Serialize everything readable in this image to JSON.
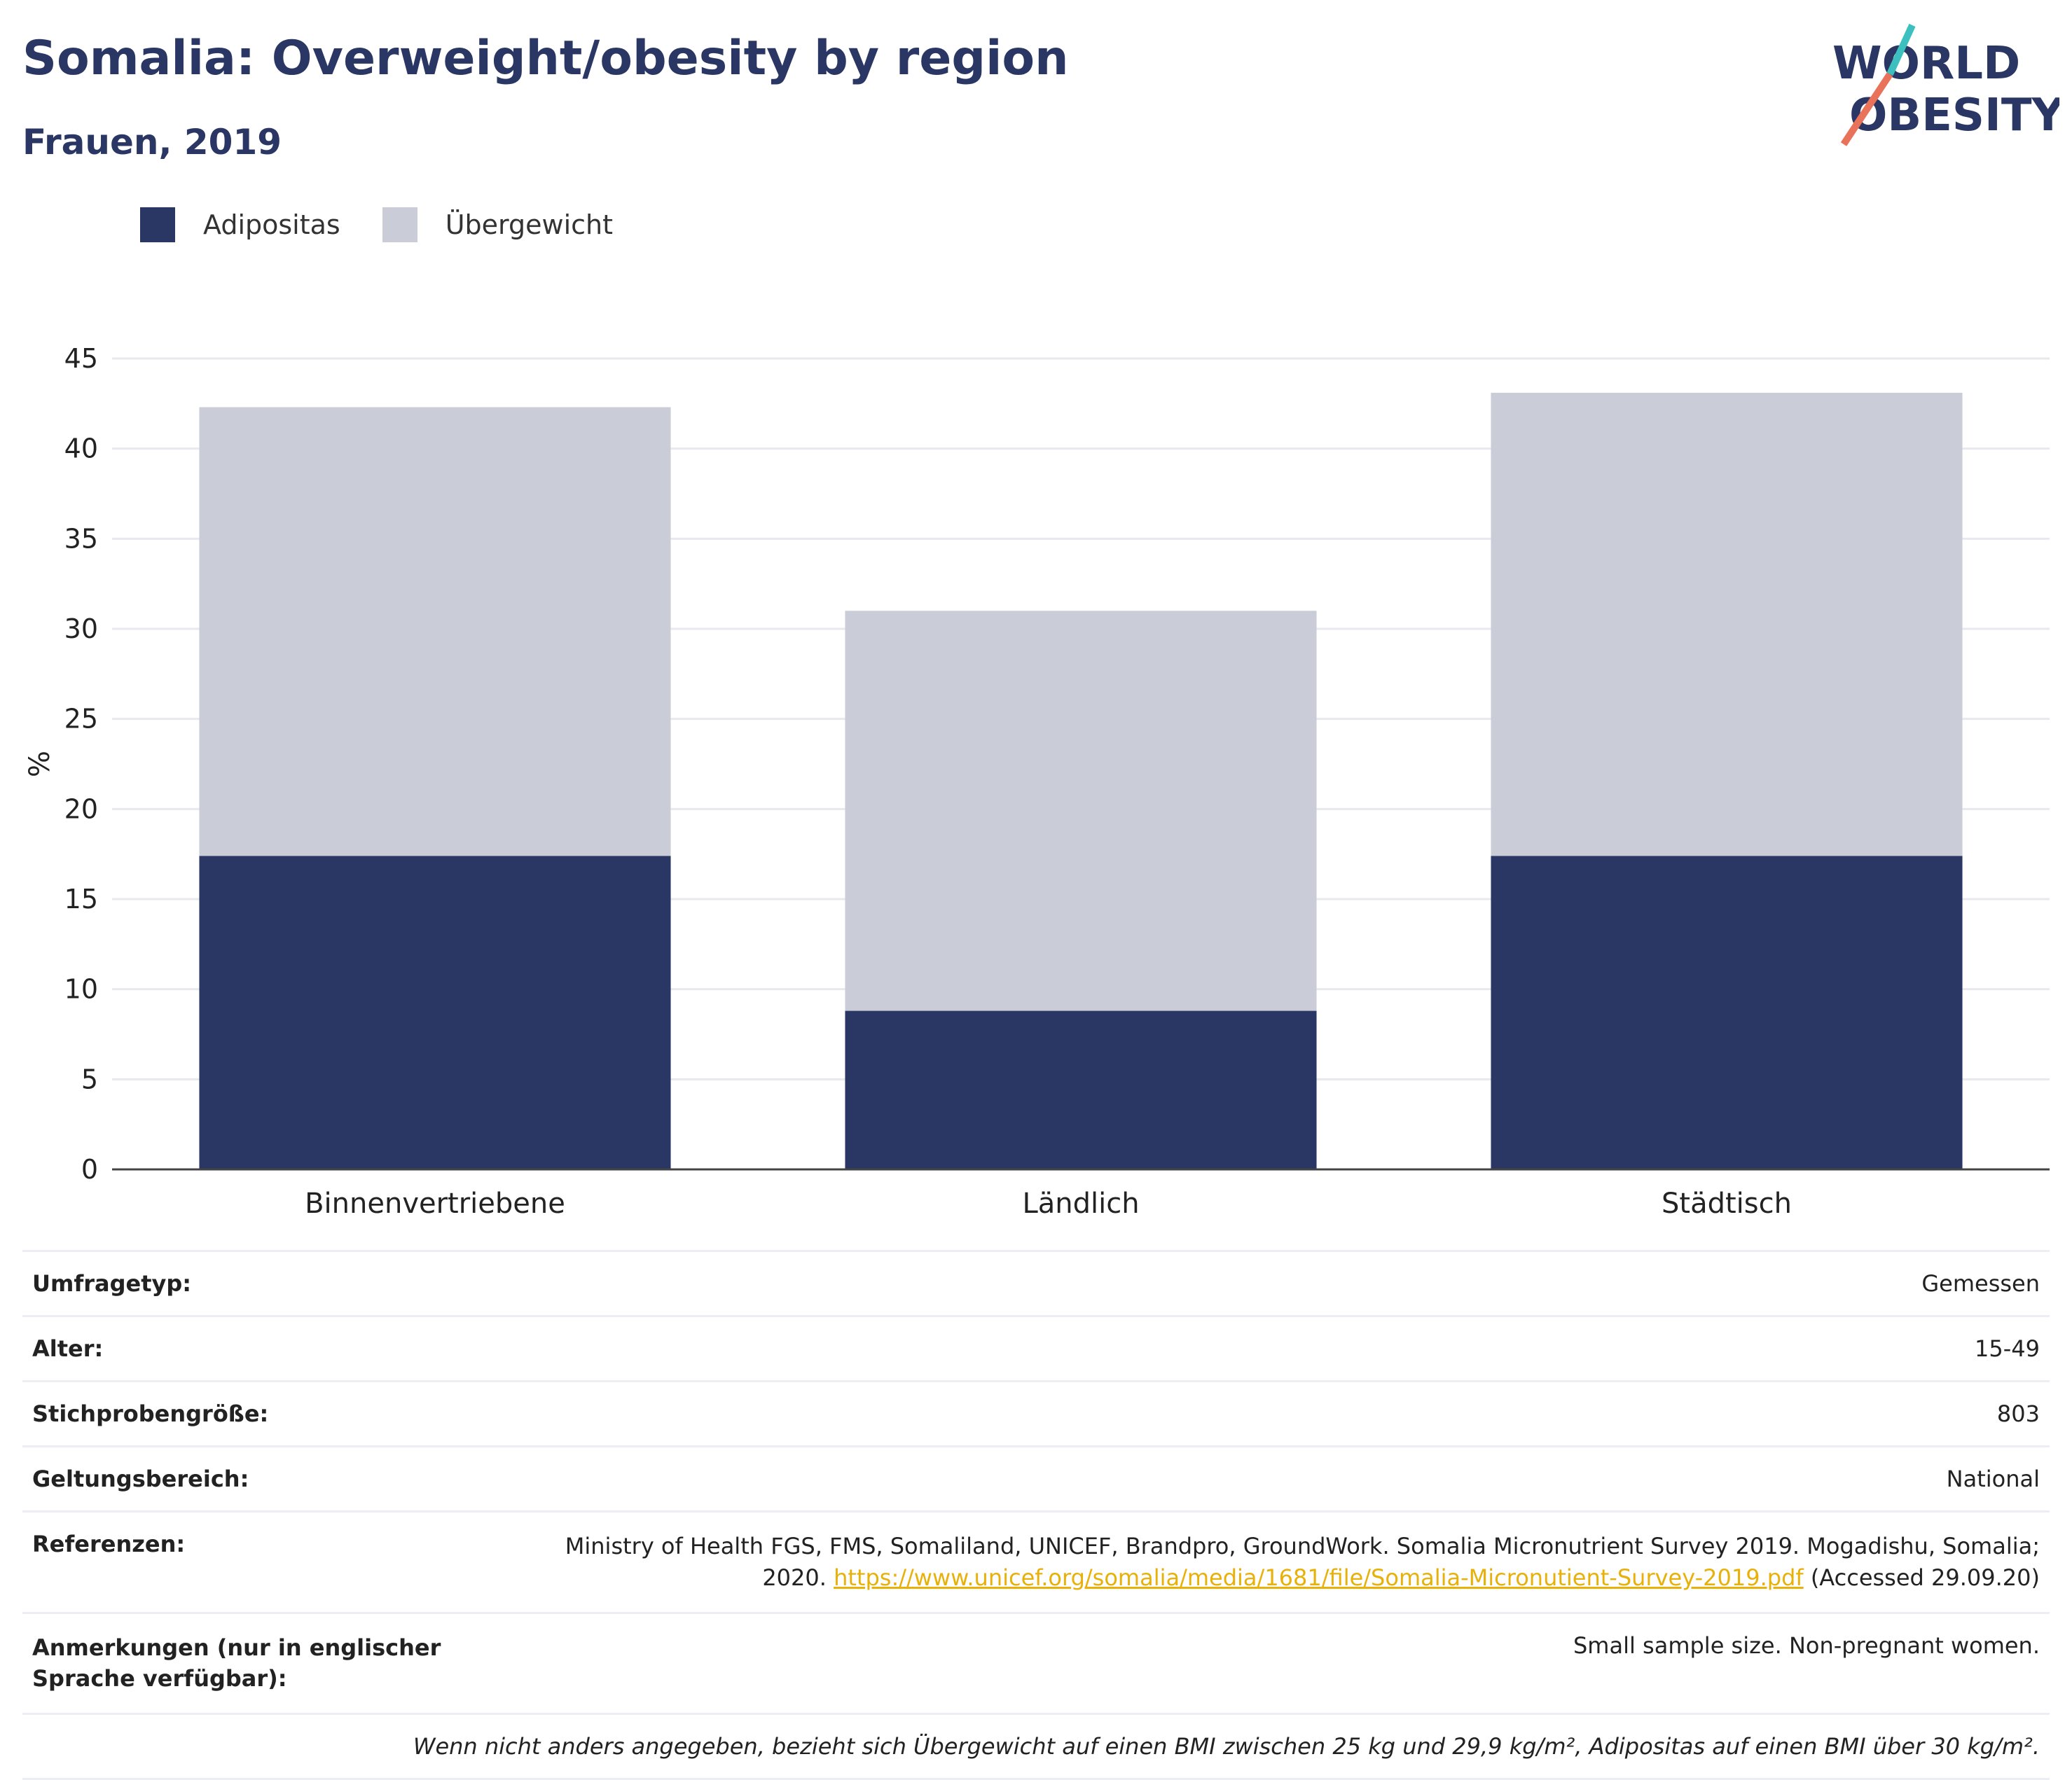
{
  "header": {
    "title": "Somalia: Overweight/obesity by region",
    "subtitle": "Frauen, 2019"
  },
  "logo": {
    "line1": "WORLD",
    "line2": "OBESITY",
    "icon": "world-obesity-logo"
  },
  "colors": {
    "obesity": "#2a3663",
    "overweight": "#cacdd8",
    "accent_teal": "#3bbfbf",
    "accent_coral": "#e8735a",
    "link": "#e8b10a"
  },
  "legend": [
    {
      "label": "Adipositas",
      "color": "#2a3663"
    },
    {
      "label": "Übergewicht",
      "color": "#cacdd8"
    }
  ],
  "chart_data": {
    "type": "bar",
    "stacked": true,
    "categories": [
      "Binnenvertriebene",
      "Ländlich",
      "Städtisch"
    ],
    "series": [
      {
        "name": "Adipositas",
        "values": [
          17.4,
          8.8,
          17.4
        ]
      },
      {
        "name": "Übergewicht",
        "values": [
          24.9,
          22.2,
          25.7
        ]
      }
    ],
    "ylabel": "%",
    "ylim": [
      0,
      45
    ],
    "yticks": [
      0,
      5,
      10,
      15,
      20,
      25,
      30,
      35,
      40,
      45
    ],
    "grid": true,
    "legend_position": "top-left"
  },
  "info": {
    "survey_type": {
      "label": "Umfragetyp:",
      "value": "Gemessen"
    },
    "age": {
      "label": "Alter:",
      "value": "15-49"
    },
    "sample_size": {
      "label": "Stichprobengröße:",
      "value": "803"
    },
    "scope": {
      "label": "Geltungsbereich:",
      "value": "National"
    },
    "references": {
      "label": "Referenzen:",
      "text_line1": "Ministry of Health FGS, FMS, Somaliland, UNICEF, Brandpro, GroundWork. Somalia Micronutrient Survey 2019. Mogadishu, Somalia;",
      "text_line2_prefix": "2020.",
      "link": "https://www.unicef.org/somalia/media/1681/file/Somalia-Micronutient-Survey-2019.pdf",
      "suffix": "(Accessed 29.09.20)"
    },
    "notes": {
      "label": "Anmerkungen (nur in englischer Sprache verfügbar):",
      "value": "Small sample size. Non-pregnant women."
    },
    "footnote": "Wenn nicht anders angegeben, bezieht sich Übergewicht auf einen BMI zwischen 25 kg und 29,9 kg/m², Adipositas auf einen BMI über 30 kg/m²."
  }
}
